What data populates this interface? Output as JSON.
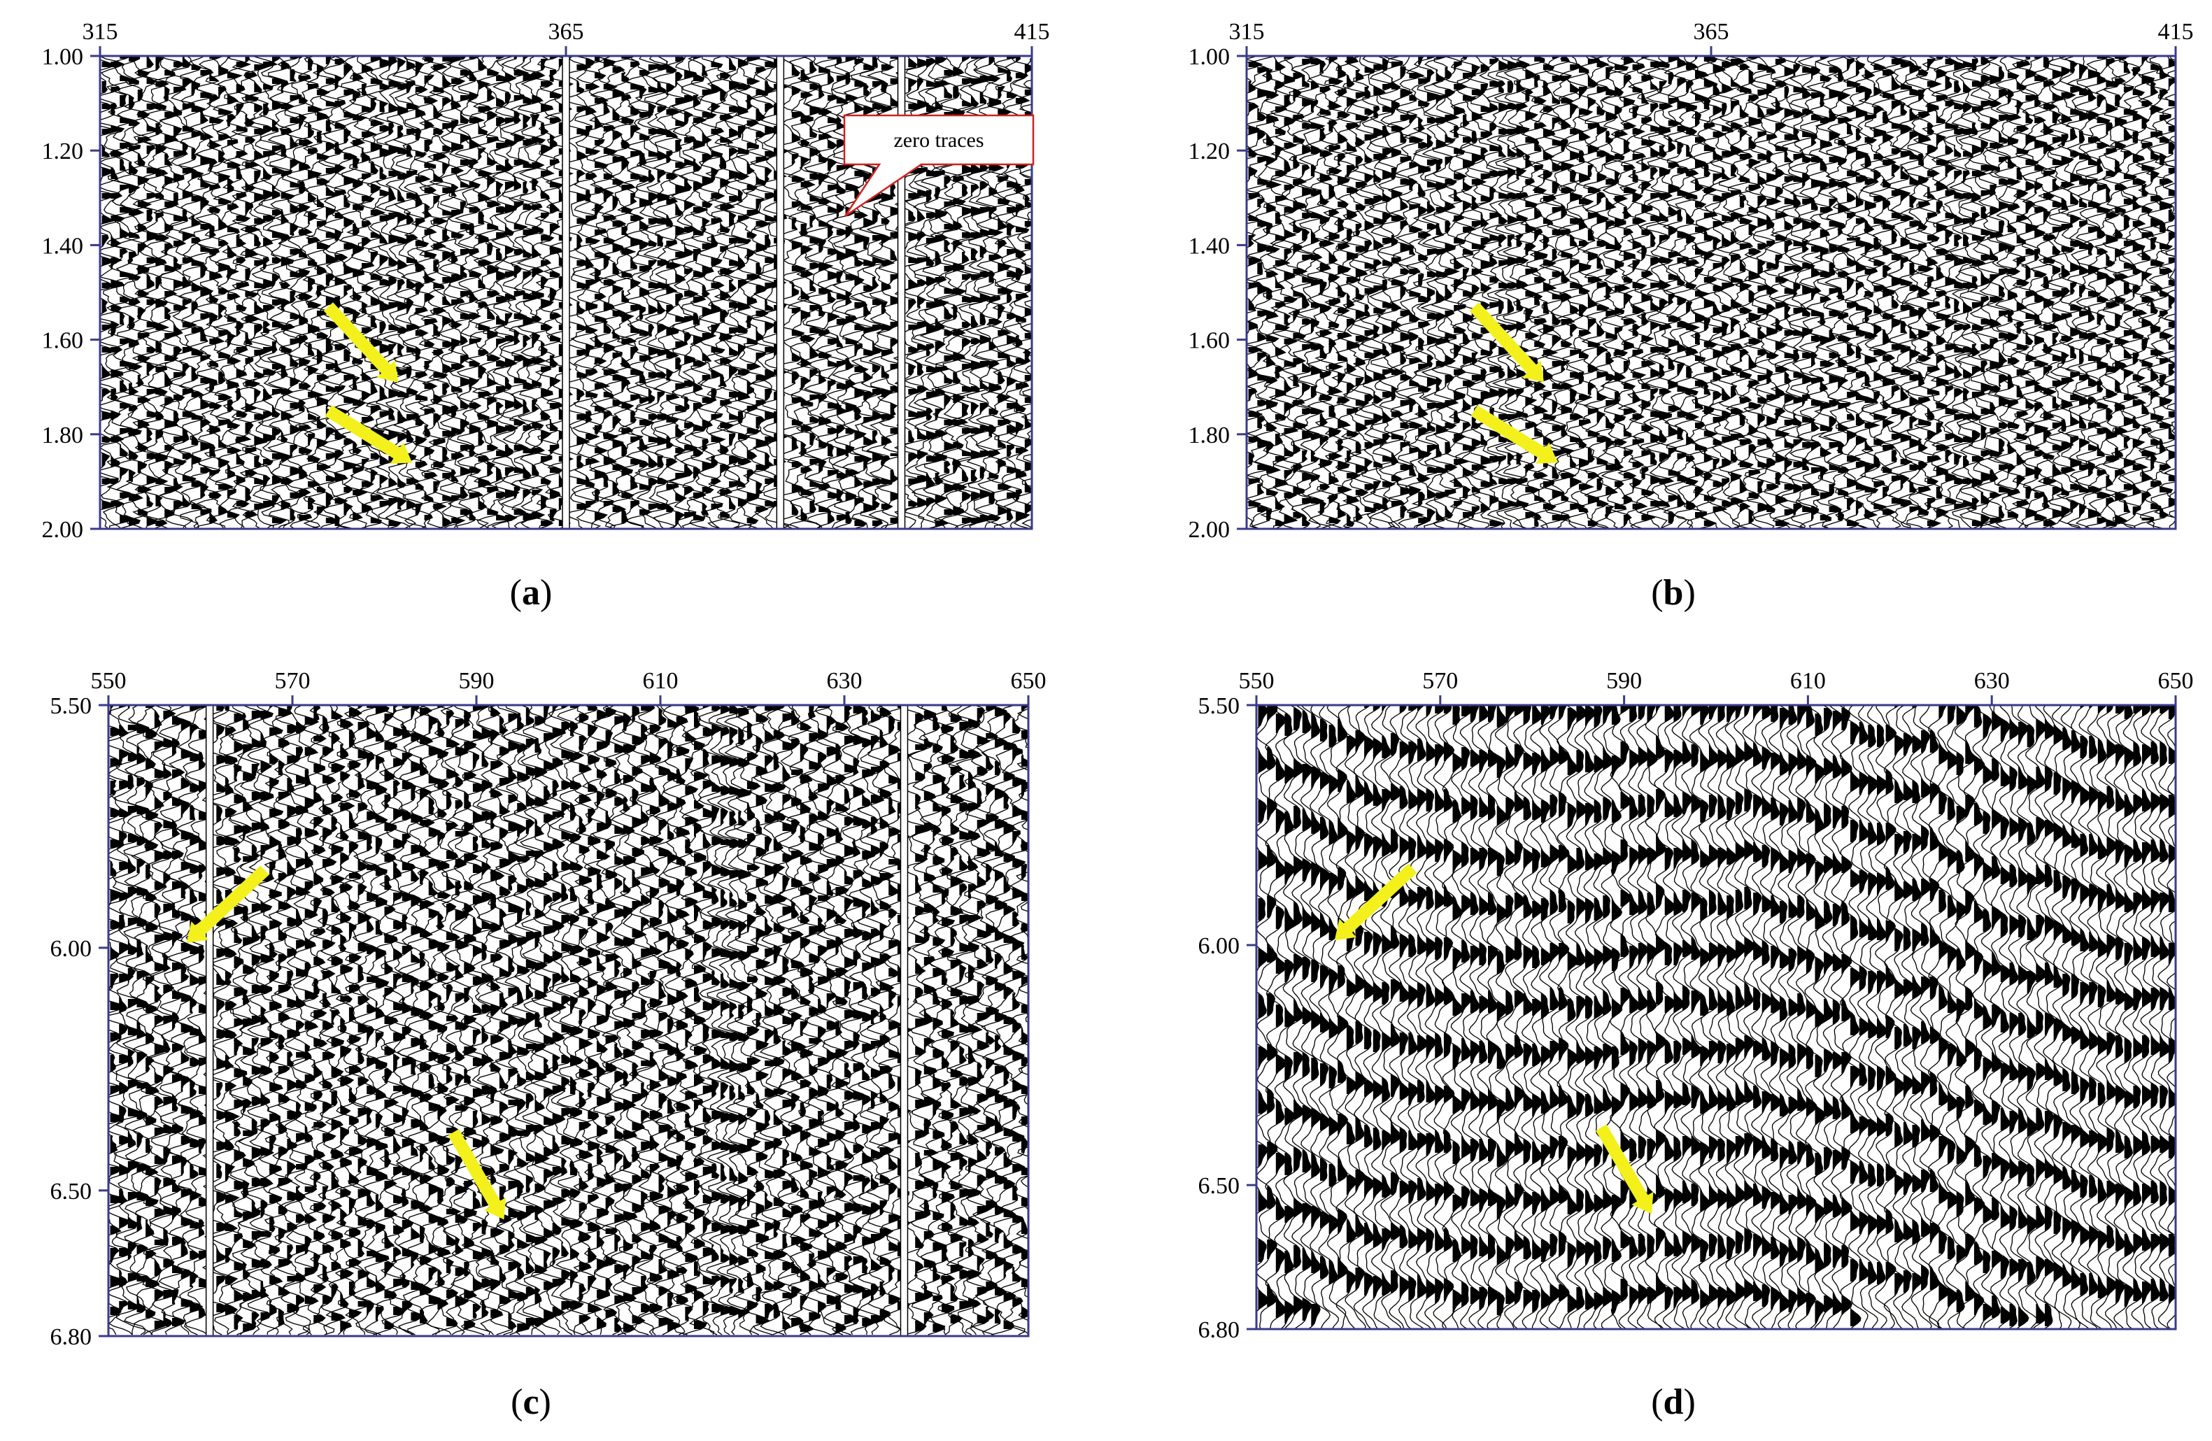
{
  "panels": [
    {
      "id": "a",
      "caption_letter": "a",
      "x_ticks": [
        "315",
        "365",
        "415"
      ],
      "y_ticks": [
        "1.00",
        "1.20",
        "1.40",
        "1.60",
        "1.80",
        "2.00"
      ],
      "zero_trace_positions": [
        365,
        388,
        401
      ],
      "callout": "zero traces",
      "arrows": [
        {
          "x1": 339.5,
          "y1": 1.53,
          "x2": 347,
          "y2": 1.69
        },
        {
          "x1": 339.5,
          "y1": 1.75,
          "x2": 348.5,
          "y2": 1.86
        }
      ]
    },
    {
      "id": "b",
      "caption_letter": "b",
      "x_ticks": [
        "315",
        "365",
        "415"
      ],
      "y_ticks": [
        "1.00",
        "1.20",
        "1.40",
        "1.60",
        "1.80",
        "2.00"
      ],
      "zero_trace_positions": [],
      "callout": "",
      "arrows": [
        {
          "x1": 339.5,
          "y1": 1.53,
          "x2": 347,
          "y2": 1.69
        },
        {
          "x1": 339.5,
          "y1": 1.75,
          "x2": 348.5,
          "y2": 1.86
        }
      ]
    },
    {
      "id": "c",
      "caption_letter": "c",
      "x_ticks": [
        "550",
        "570",
        "590",
        "610",
        "630",
        "650"
      ],
      "y_ticks": [
        "5.50",
        "6.00",
        "6.50",
        "6.80"
      ],
      "zero_trace_positions": [
        561,
        636.5
      ],
      "callout": "",
      "arrows": [
        {
          "x1": 567,
          "y1": 5.84,
          "x2": 558.5,
          "y2": 5.99
        },
        {
          "x1": 587.5,
          "y1": 6.38,
          "x2": 593,
          "y2": 6.56
        }
      ]
    },
    {
      "id": "d",
      "caption_letter": "d",
      "x_ticks": [
        "550",
        "570",
        "590",
        "610",
        "630",
        "650"
      ],
      "y_ticks": [
        "5.50",
        "6.00",
        "6.50",
        "6.80"
      ],
      "zero_trace_positions": [],
      "callout": "",
      "arrows": [
        {
          "x1": 567,
          "y1": 5.84,
          "x2": 558.5,
          "y2": 5.99
        },
        {
          "x1": 587.5,
          "y1": 6.38,
          "x2": 593,
          "y2": 6.56
        }
      ]
    }
  ],
  "colors": {
    "frame": "#3a3a8c",
    "arrow": "#f3f01c",
    "callout_border": "#d22020",
    "trace": "#000000"
  }
}
